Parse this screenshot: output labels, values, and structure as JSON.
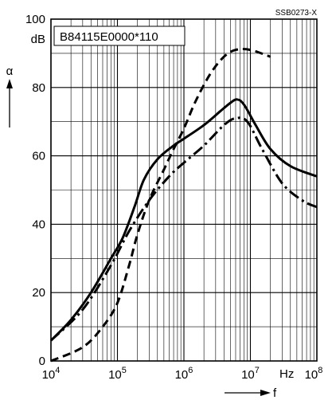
{
  "chart_data": {
    "type": "line",
    "code": "SSB0273-X",
    "part_label": "B84115E0000*110",
    "y_axis": {
      "symbol": "α",
      "unit": "dB",
      "ylim": [
        0,
        100
      ],
      "ticks": [
        "0",
        "20",
        "40",
        "60",
        "80",
        "100"
      ]
    },
    "x_axis": {
      "symbol": "f",
      "unit": "Hz",
      "scale": "log",
      "xlim": [
        10000,
        100000000
      ],
      "ticks": [
        {
          "base": "10",
          "exp": "4"
        },
        {
          "base": "10",
          "exp": "5"
        },
        {
          "base": "10",
          "exp": "6"
        },
        {
          "base": "10",
          "exp": "7"
        },
        {
          "base": "10",
          "exp": "8"
        }
      ]
    },
    "grid": true,
    "series": [
      {
        "style": "solid",
        "points": [
          [
            10000,
            6
          ],
          [
            20000,
            12
          ],
          [
            40000,
            20
          ],
          [
            80000,
            30
          ],
          [
            120000,
            36
          ],
          [
            180000,
            45
          ],
          [
            250000,
            53
          ],
          [
            400000,
            59
          ],
          [
            700000,
            63
          ],
          [
            1000000,
            65
          ],
          [
            2000000,
            69
          ],
          [
            3500000,
            73
          ],
          [
            5000000,
            75.5
          ],
          [
            6300000,
            76.5
          ],
          [
            8000000,
            75
          ],
          [
            12000000,
            69
          ],
          [
            20000000,
            62
          ],
          [
            40000000,
            57
          ],
          [
            100000000,
            54
          ]
        ]
      },
      {
        "style": "dashed",
        "points": [
          [
            10000,
            0
          ],
          [
            30000,
            4
          ],
          [
            60000,
            10
          ],
          [
            100000,
            17
          ],
          [
            150000,
            28
          ],
          [
            200000,
            37
          ],
          [
            300000,
            47
          ],
          [
            500000,
            56
          ],
          [
            700000,
            62
          ],
          [
            1000000,
            68
          ],
          [
            1500000,
            76
          ],
          [
            2500000,
            84
          ],
          [
            4000000,
            89
          ],
          [
            6000000,
            91
          ],
          [
            10000000,
            91
          ],
          [
            20000000,
            89
          ]
        ]
      },
      {
        "style": "dash-dot",
        "points": [
          [
            10000,
            6
          ],
          [
            30000,
            15
          ],
          [
            80000,
            28
          ],
          [
            150000,
            38
          ],
          [
            300000,
            47
          ],
          [
            600000,
            54
          ],
          [
            1000000,
            58
          ],
          [
            2000000,
            63
          ],
          [
            4000000,
            69
          ],
          [
            6000000,
            71
          ],
          [
            9000000,
            70
          ],
          [
            15000000,
            62
          ],
          [
            30000000,
            52
          ],
          [
            60000000,
            47
          ],
          [
            100000000,
            45
          ]
        ]
      }
    ]
  }
}
